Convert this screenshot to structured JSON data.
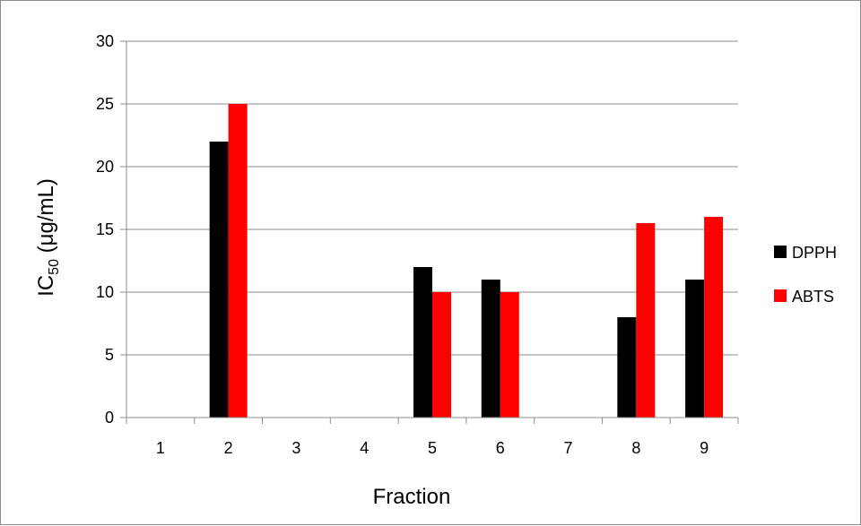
{
  "chart_data": {
    "type": "bar",
    "categories": [
      "1",
      "2",
      "3",
      "4",
      "5",
      "6",
      "7",
      "8",
      "9"
    ],
    "series": [
      {
        "name": "DPPH",
        "color": "#000000",
        "values": [
          null,
          22,
          null,
          null,
          12,
          11,
          null,
          8,
          11
        ]
      },
      {
        "name": "ABTS",
        "color": "#ff0000",
        "values": [
          null,
          25,
          null,
          null,
          10,
          10,
          null,
          15.5,
          16
        ]
      }
    ],
    "title": "",
    "xlabel": "Fraction",
    "ylabel_main": "IC",
    "ylabel_sub": "50",
    "ylabel_rest": " (μg/mL)",
    "ylim": [
      0,
      30
    ],
    "yticks": [
      0,
      5,
      10,
      15,
      20,
      25,
      30
    ],
    "yticks_labels": [
      "0",
      "5",
      "10",
      "15",
      "20",
      "25",
      "30"
    ],
    "grid": true,
    "legend_position": "right"
  }
}
